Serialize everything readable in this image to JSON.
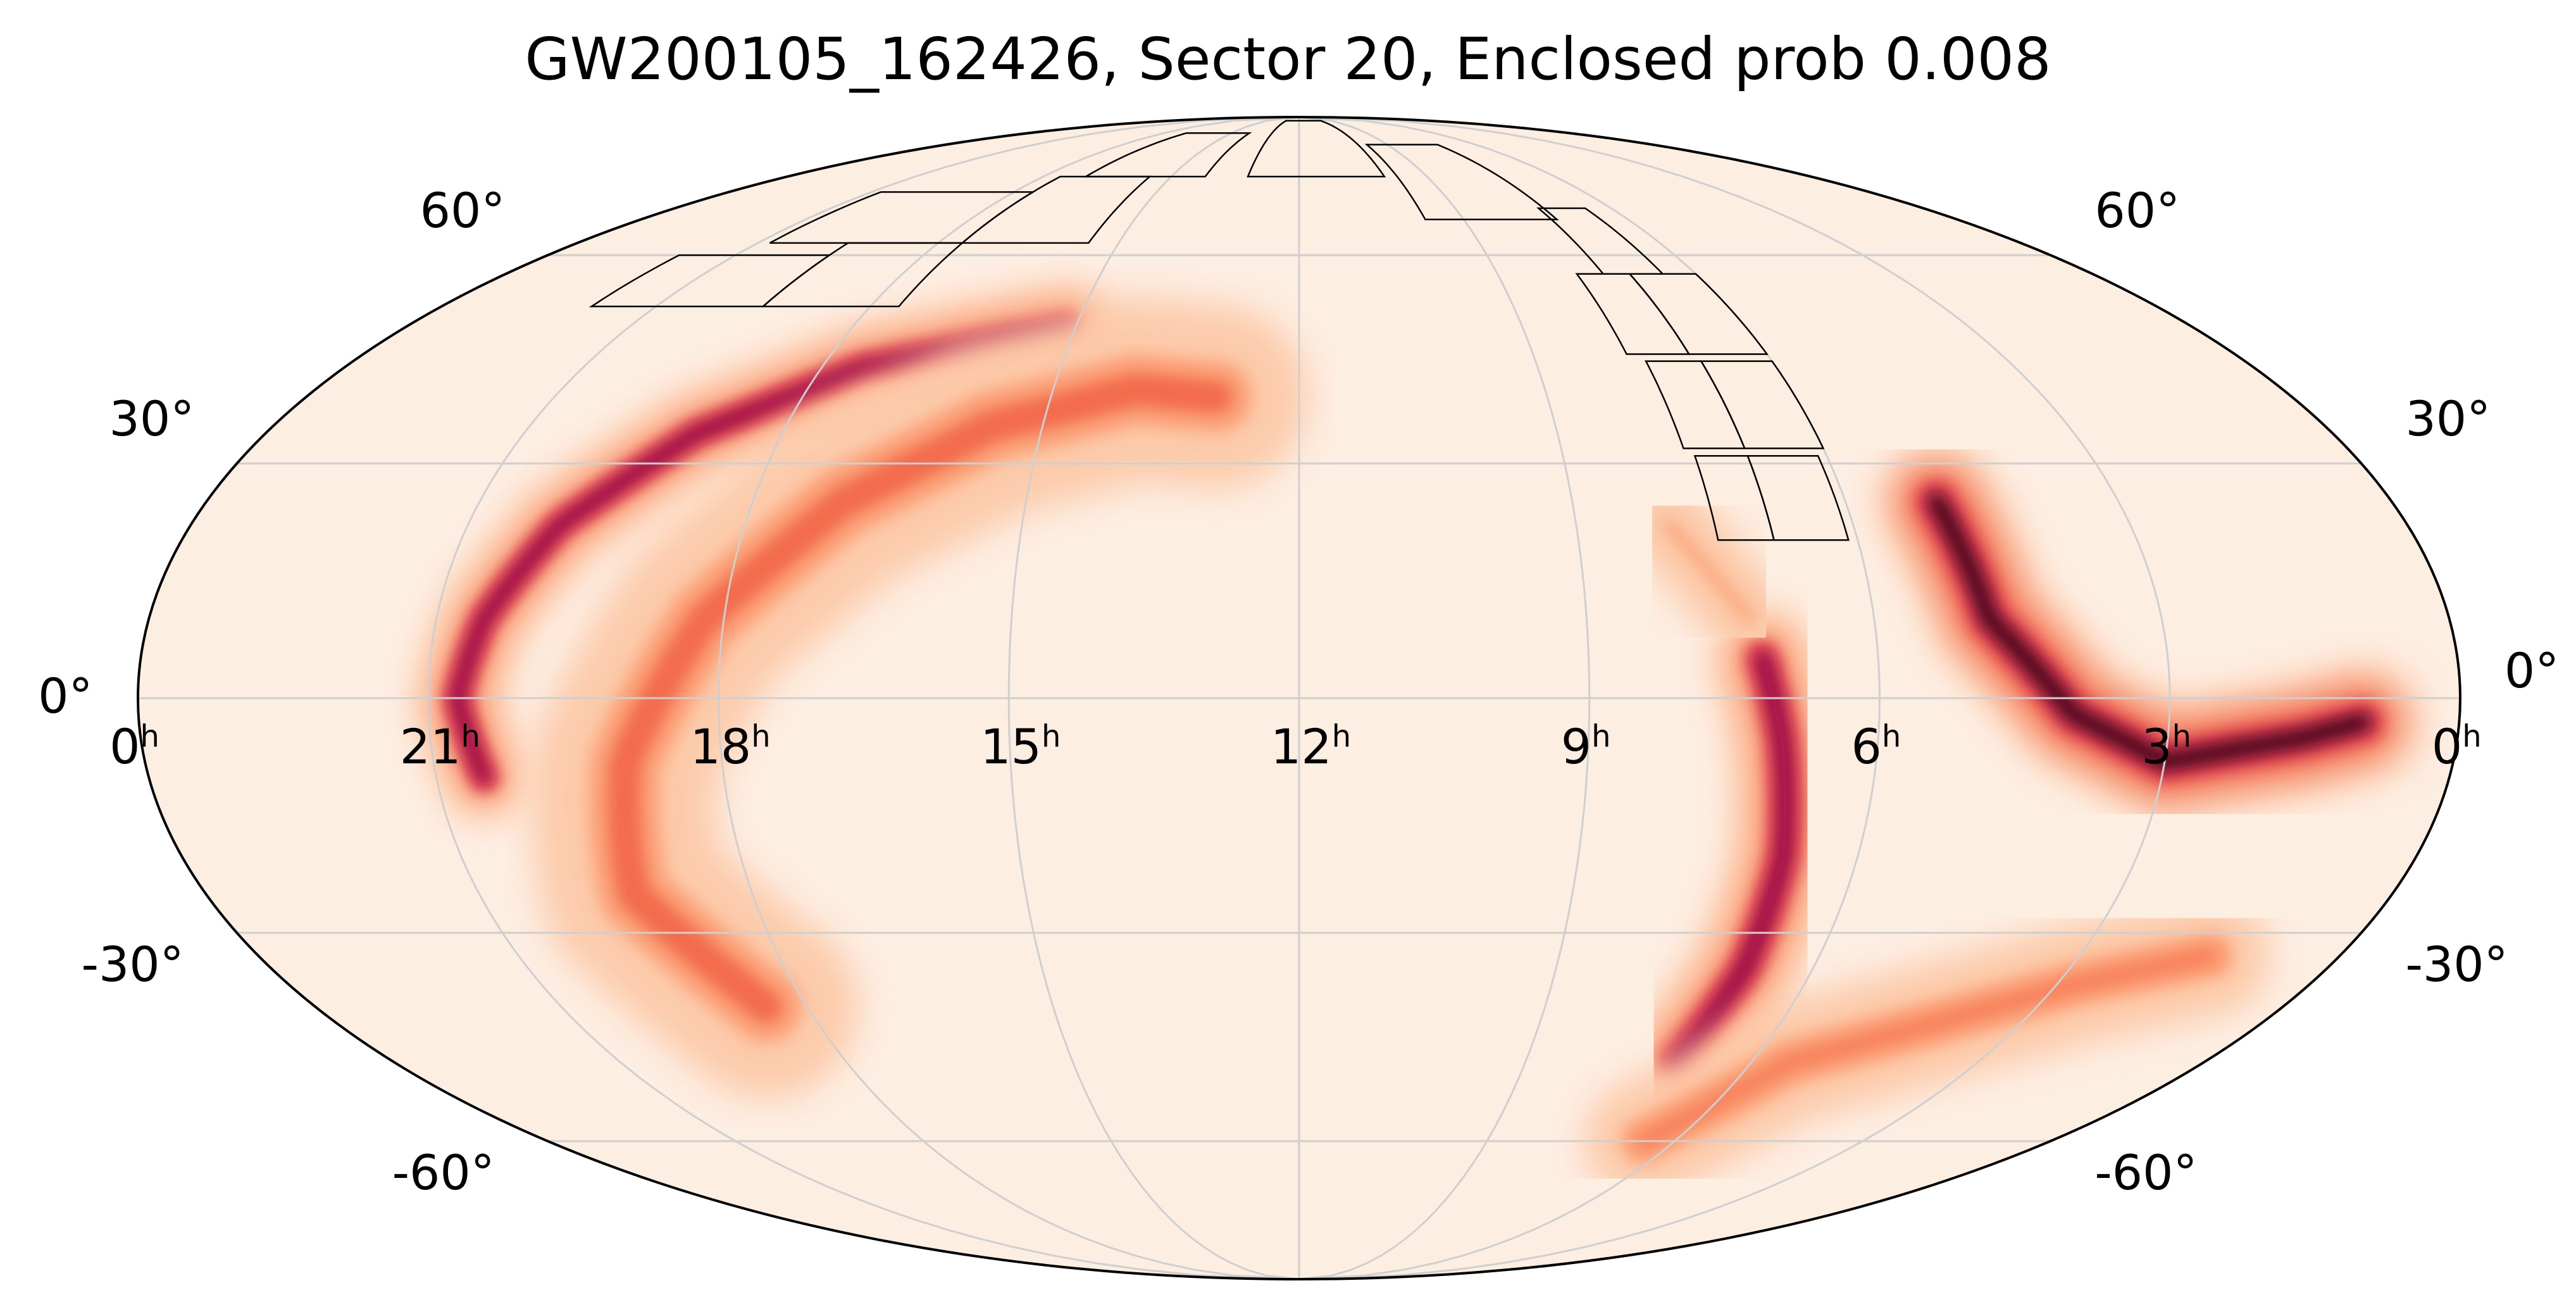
{
  "chart_data": {
    "type": "heatmap",
    "projection": "mollweide",
    "title": "GW200105_162426, Sector 20, Enclosed prob 0.008",
    "event": "GW200105_162426",
    "sector": 20,
    "enclosed_prob": 0.008,
    "grid": true,
    "colormap": [
      "#fdeee2",
      "#fcc9a8",
      "#fb9a70",
      "#f26a4c",
      "#de3c4c",
      "#b5124f",
      "#7a0840",
      "#26000f"
    ],
    "ra_ticks": [
      {
        "hours": 24,
        "label": "0",
        "unit": "h"
      },
      {
        "hours": 21,
        "label": "21",
        "unit": "h"
      },
      {
        "hours": 18,
        "label": "18",
        "unit": "h"
      },
      {
        "hours": 15,
        "label": "15",
        "unit": "h"
      },
      {
        "hours": 12,
        "label": "12",
        "unit": "h"
      },
      {
        "hours": 9,
        "label": "9",
        "unit": "h"
      },
      {
        "hours": 6,
        "label": "6",
        "unit": "h"
      },
      {
        "hours": 3,
        "label": "3",
        "unit": "h"
      },
      {
        "hours": 0,
        "label": "0",
        "unit": "h"
      }
    ],
    "dec_ticks": [
      {
        "deg": 60,
        "label": "60°"
      },
      {
        "deg": 30,
        "label": "30°"
      },
      {
        "deg": 0,
        "label": "0°"
      },
      {
        "deg": -30,
        "label": "-30°"
      },
      {
        "deg": -60,
        "label": "-60°"
      }
    ],
    "probability_regions": [
      {
        "name": "northern-arc-inner",
        "points": [
          [
            20.5,
            -10
          ],
          [
            20.7,
            0
          ],
          [
            20.5,
            10
          ],
          [
            20.0,
            22
          ],
          [
            19.0,
            34
          ],
          [
            17.5,
            43
          ],
          [
            16.0,
            47
          ],
          [
            15.1,
            49
          ]
        ],
        "width": 5,
        "peak": 0.92
      },
      {
        "name": "northern-arc-outer",
        "points": [
          [
            18.5,
            -40
          ],
          [
            19.3,
            -25
          ],
          [
            19.0,
            -8
          ],
          [
            18.2,
            10
          ],
          [
            17.0,
            25
          ],
          [
            15.6,
            35
          ],
          [
            14.0,
            40
          ],
          [
            13.0,
            39
          ]
        ],
        "width": 11,
        "peak": 0.45
      },
      {
        "name": "vertical-band",
        "points": [
          [
            7.2,
            5
          ],
          [
            7.0,
            -5
          ],
          [
            6.8,
            -20
          ],
          [
            6.8,
            -35
          ],
          [
            7.0,
            -48
          ]
        ],
        "width": 6,
        "peak": 0.9
      },
      {
        "name": "southern-band",
        "points": [
          [
            6.5,
            -60
          ],
          [
            5.5,
            -48
          ],
          [
            4.0,
            -42
          ],
          [
            2.8,
            -37
          ],
          [
            1.5,
            -33
          ]
        ],
        "width": 7,
        "peak": 0.4
      },
      {
        "name": "right-blob",
        "points": [
          [
            5.0,
            25
          ],
          [
            4.8,
            10
          ],
          [
            4.0,
            -2
          ],
          [
            3.0,
            -8
          ],
          [
            1.6,
            -5
          ],
          [
            1.0,
            -3
          ]
        ],
        "width": 7,
        "peak": 0.95
      },
      {
        "name": "upper-diffuse",
        "points": [
          [
            8.0,
            22
          ],
          [
            7.3,
            10
          ]
        ],
        "width": 8,
        "peak": 0.25
      }
    ],
    "tess_footprint": {
      "camera_cells": [
        {
          "ra": [
            21.9,
            19.5
          ],
          "dec": [
            52,
            60
          ]
        },
        {
          "ra": [
            19.5,
            17.6
          ],
          "dec": [
            52,
            62
          ]
        },
        {
          "ra": [
            20.8,
            17.6
          ],
          "dec": [
            62,
            71
          ]
        },
        {
          "ra": [
            17.6,
            15.5
          ],
          "dec": [
            62,
            74
          ]
        },
        {
          "ra": [
            17.0,
            14.2
          ],
          "dec": [
            74,
            84
          ]
        },
        {
          "ra": [
            13.2,
            10.0
          ],
          "dec": [
            74,
            88
          ]
        },
        {
          "ra": [
            9.7,
            7.3
          ],
          "dec": [
            66,
            81
          ]
        },
        {
          "ra": [
            7.4,
            6.5
          ],
          "dec": [
            57,
            68
          ]
        },
        {
          "ra": [
            7.8,
            7.0
          ],
          "dec": [
            45,
            57
          ]
        },
        {
          "ra": [
            7.0,
            6.0
          ],
          "dec": [
            45,
            57
          ]
        },
        {
          "ra": [
            7.6,
            6.9
          ],
          "dec": [
            32,
            44
          ]
        },
        {
          "ra": [
            6.9,
            6.0
          ],
          "dec": [
            32,
            44
          ]
        },
        {
          "ra": [
            7.5,
            6.9
          ],
          "dec": [
            20,
            31
          ]
        },
        {
          "ra": [
            6.9,
            6.1
          ],
          "dec": [
            20,
            31
          ]
        }
      ]
    }
  }
}
